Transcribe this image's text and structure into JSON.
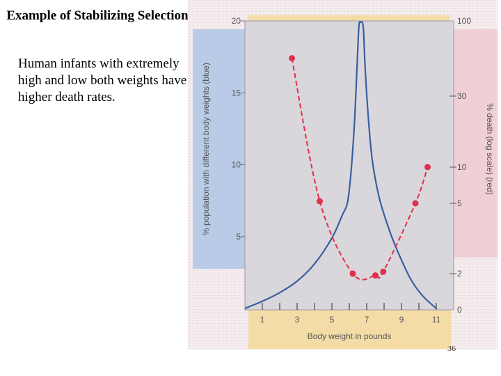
{
  "slide": {
    "title": "Example of Stabilizing Selection",
    "body": "Human infants with extremely high and low both weights have higher death rates.",
    "page_number": "36"
  },
  "chart_data": {
    "type": "line",
    "xlabel": "Body weight in pounds",
    "ylabel_left": "% population with different body weights (blue)",
    "ylabel_right": "% death (log scale) (red)",
    "x_ticks": [
      1,
      3,
      5,
      7,
      9,
      11
    ],
    "x_range": [
      0,
      12
    ],
    "y_left_ticks": [
      5,
      10,
      15,
      20
    ],
    "y_left_range": [
      0,
      20
    ],
    "y_right_ticks": [
      0,
      2,
      5,
      10,
      30,
      100
    ],
    "y_right_scale": "log",
    "colors": {
      "population": "#3a5f9e",
      "death": "#e0304a",
      "left_band": "#b9cbe6",
      "right_band": "#f0d0d6",
      "x_band": "#f3dca6",
      "plot_bg": "#d9d6dc"
    },
    "series": [
      {
        "axis": "left",
        "style": "solid",
        "points": [
          [
            0,
            0
          ],
          [
            1,
            0.5
          ],
          [
            2,
            1.1
          ],
          [
            3,
            1.9
          ],
          [
            4,
            3.1
          ],
          [
            5,
            4.9
          ],
          [
            5.6,
            6.5
          ],
          [
            5.9,
            7.4
          ],
          [
            6.1,
            9.5
          ],
          [
            6.3,
            13
          ],
          [
            6.45,
            17
          ],
          [
            6.55,
            19.6
          ],
          [
            6.65,
            19.9
          ],
          [
            6.8,
            19.6
          ],
          [
            6.9,
            17
          ],
          [
            7.05,
            14
          ],
          [
            7.3,
            10.5
          ],
          [
            7.7,
            7.8
          ],
          [
            8.2,
            5.8
          ],
          [
            8.7,
            4.2
          ],
          [
            9.5,
            2.1
          ],
          [
            10.2,
            0.9
          ],
          [
            11,
            0
          ]
        ]
      },
      {
        "axis": "right",
        "style": "dashed-with-markers",
        "points": [
          [
            2.7,
            55
          ],
          [
            4.3,
            5.2
          ],
          [
            6.2,
            2
          ],
          [
            7.5,
            1.9
          ],
          [
            7.95,
            2.05
          ],
          [
            9.8,
            5
          ],
          [
            10.5,
            10
          ]
        ]
      }
    ]
  }
}
